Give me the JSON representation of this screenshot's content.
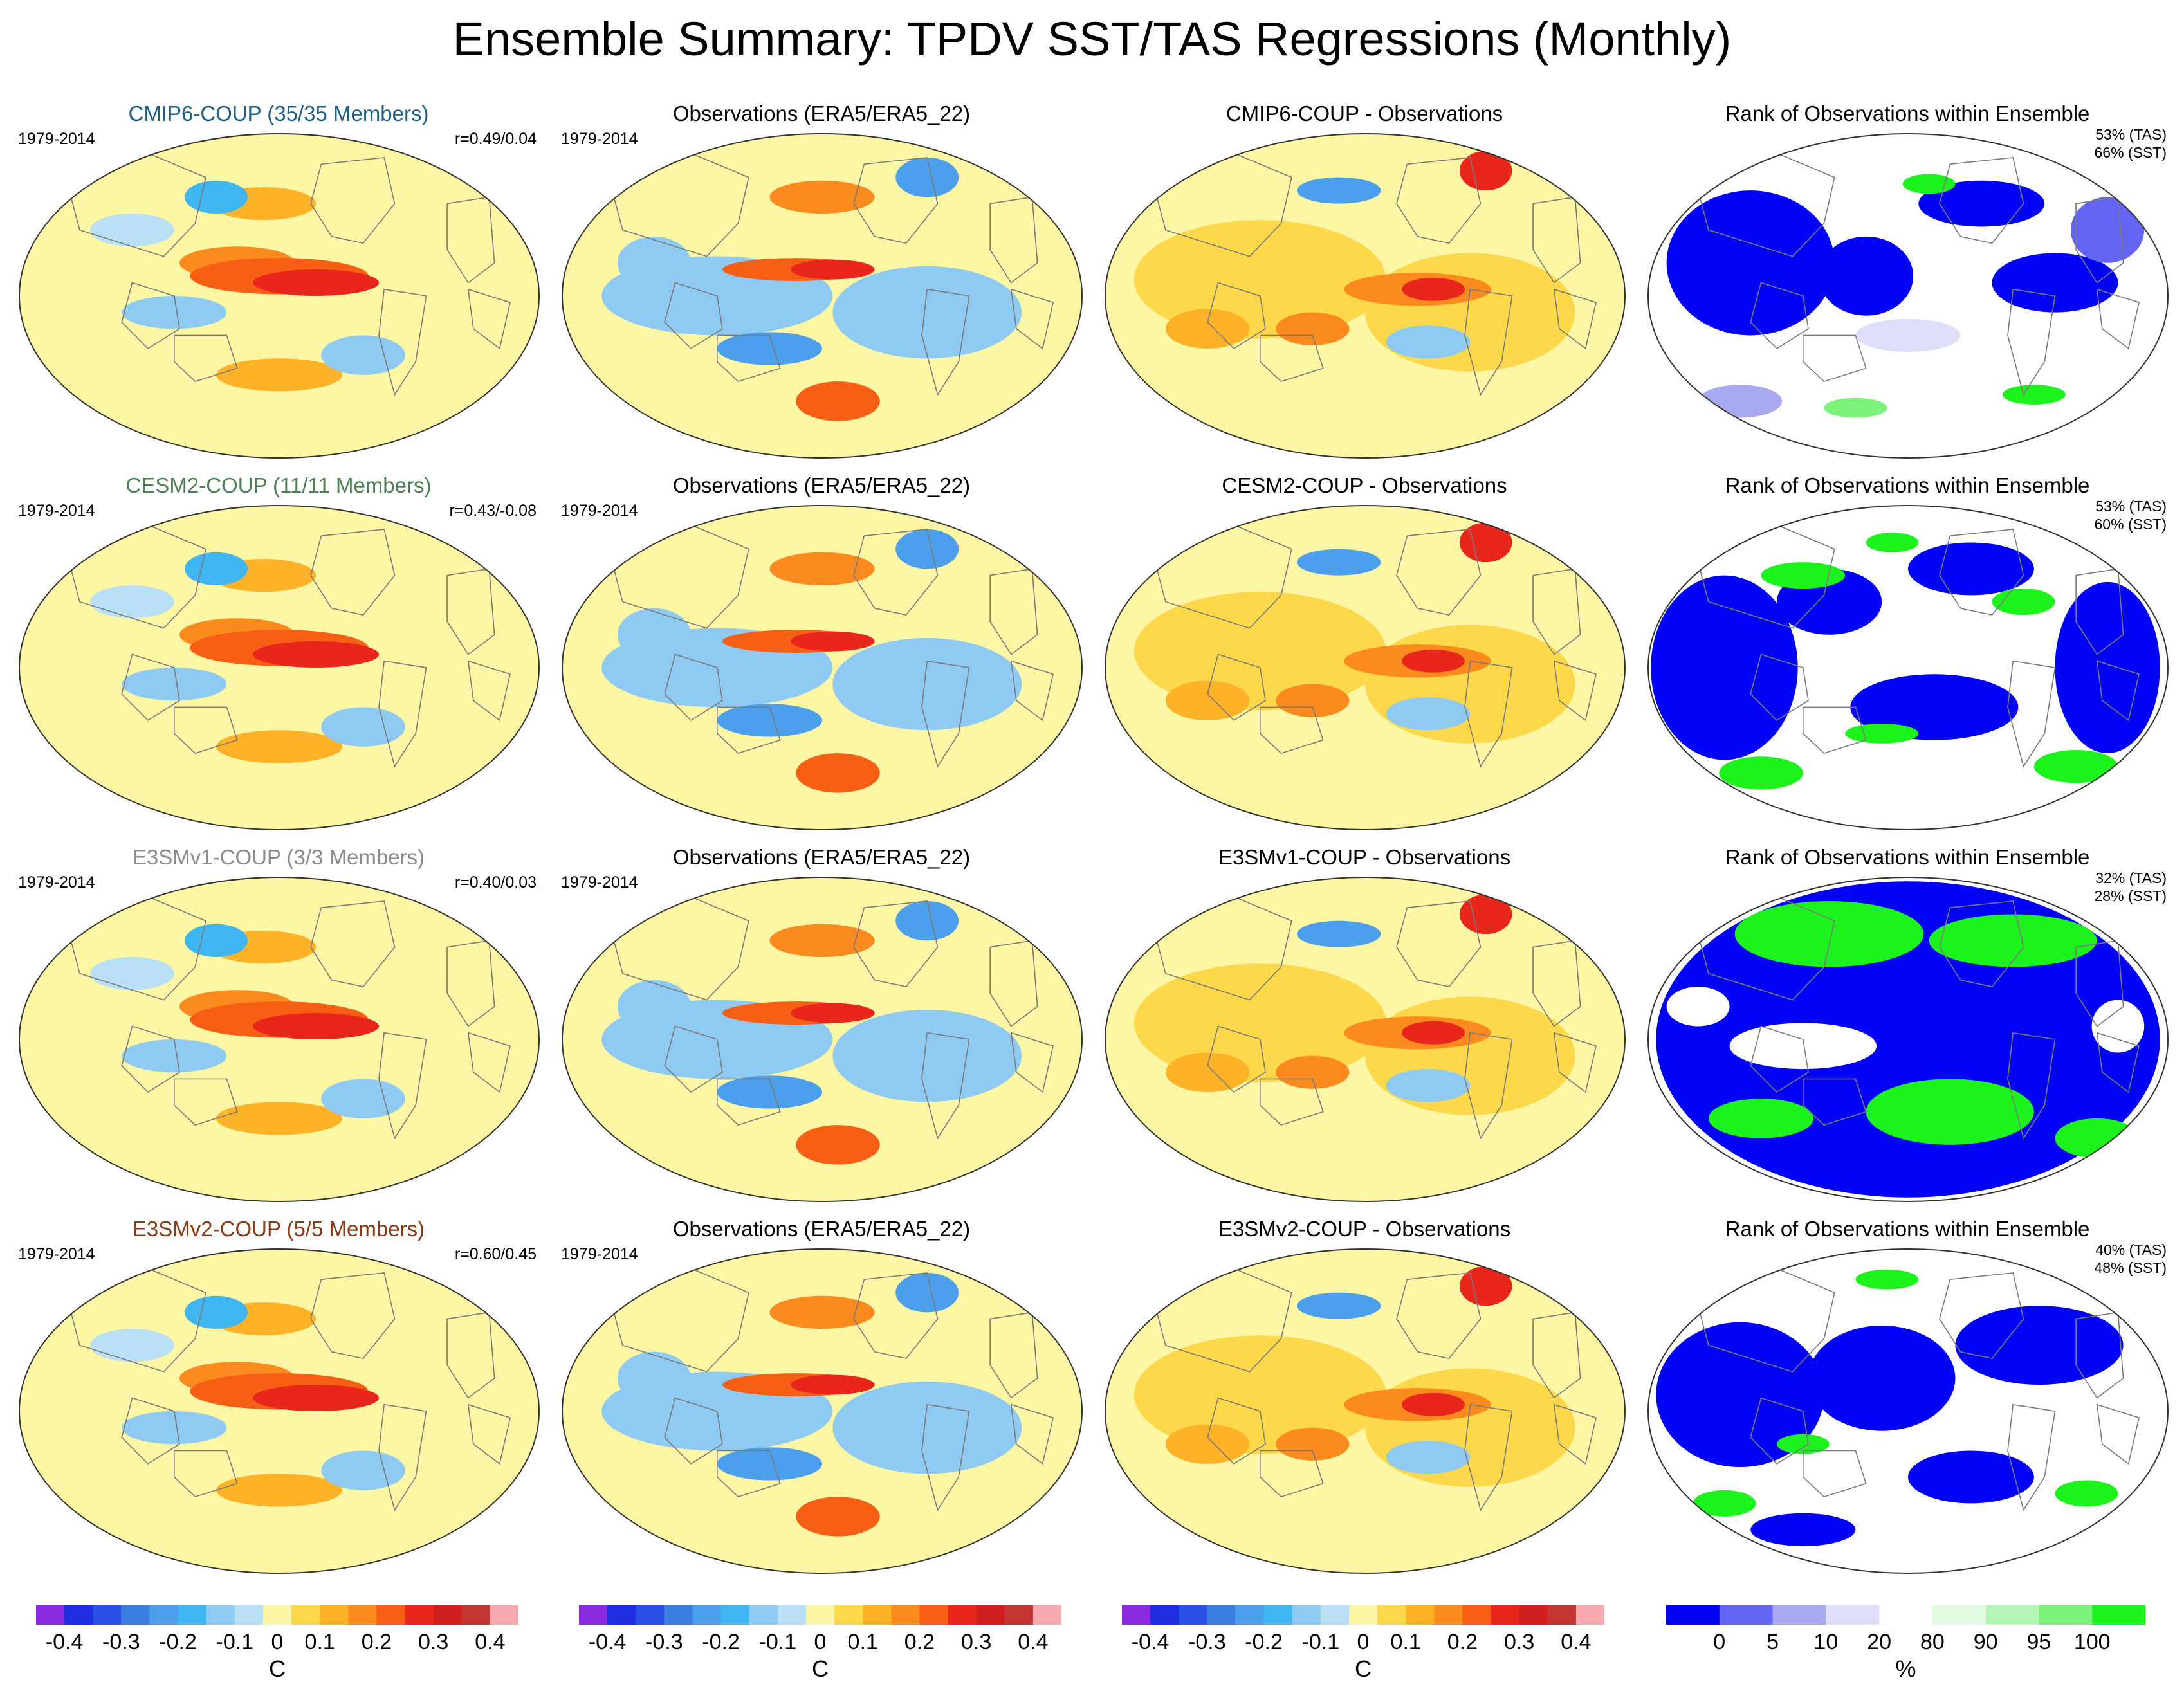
{
  "title": "Ensemble Summary: TPDV SST/TAS Regressions (Monthly)",
  "colors": {
    "yellow": "#fdf6a4",
    "land_line": "#7a7a7a",
    "diverging": [
      "#8a2be2",
      "#1f2fe0",
      "#2b50e6",
      "#3c7fe3",
      "#4b9fec",
      "#3fb6f2",
      "#8fcaf2",
      "#b9e0f5",
      "#fdf6a4",
      "#fdd84a",
      "#fdb227",
      "#fb8b1e",
      "#f65f14",
      "#e8261b",
      "#cf1f1f",
      "#c43535",
      "#f8aab0"
    ],
    "rank": [
      "#0202f6",
      "#6565f5",
      "#a9a9f1",
      "#dedefb",
      "#ffffff",
      "#e3fbe3",
      "#b8f6b8",
      "#7bf37b",
      "#1cf21c"
    ]
  },
  "rows": [
    {
      "model": {
        "title": "CMIP6-COUP (35/35 Members)",
        "title_color": "#1f5f87",
        "period": "1979-2014",
        "corr": "r=0.49/0.04"
      },
      "obs": {
        "title": "Observations (ERA5/ERA5_22)",
        "period": "1979-2014"
      },
      "diff": {
        "title": "CMIP6-COUP - Observations"
      },
      "rank": {
        "title": "Rank of Observations within Ensemble",
        "tas": "53% (TAS)",
        "sst": "66% (SST)"
      }
    },
    {
      "model": {
        "title": "CESM2-COUP (11/11 Members)",
        "title_color": "#4f7f56",
        "period": "1979-2014",
        "corr": "r=0.43/-0.08"
      },
      "obs": {
        "title": "Observations (ERA5/ERA5_22)",
        "period": "1979-2014"
      },
      "diff": {
        "title": "CESM2-COUP - Observations"
      },
      "rank": {
        "title": "Rank of Observations within Ensemble",
        "tas": "53% (TAS)",
        "sst": "60% (SST)"
      }
    },
    {
      "model": {
        "title": "E3SMv1-COUP (3/3 Members)",
        "title_color": "#8b8b8b",
        "period": "1979-2014",
        "corr": "r=0.40/0.03"
      },
      "obs": {
        "title": "Observations (ERA5/ERA5_22)",
        "period": "1979-2014"
      },
      "diff": {
        "title": "E3SMv1-COUP - Observations"
      },
      "rank": {
        "title": "Rank of Observations within Ensemble",
        "tas": "32% (TAS)",
        "sst": "28% (SST)"
      }
    },
    {
      "model": {
        "title": "E3SMv2-COUP (5/5 Members)",
        "title_color": "#8b3a17",
        "period": "1979-2014",
        "corr": "r=0.60/0.45"
      },
      "obs": {
        "title": "Observations (ERA5/ERA5_22)",
        "period": "1979-2014"
      },
      "diff": {
        "title": "E3SMv2-COUP - Observations"
      },
      "rank": {
        "title": "Rank of Observations within Ensemble",
        "tas": "40% (TAS)",
        "sst": "48% (SST)"
      }
    }
  ],
  "chart_data": {
    "type": "heatmap",
    "title": "Ensemble Summary: TPDV SST/TAS Regressions (Monthly)",
    "projection": "Robinson, Pacific-centered",
    "regression_colorbar": {
      "unit": "C",
      "tick_labels": [
        "-0.4",
        "-0.3",
        "-0.2",
        "-0.1",
        "0",
        "0.1",
        "0.2",
        "0.3",
        "0.4"
      ],
      "boundaries": [
        -0.45,
        -0.4,
        -0.35,
        -0.3,
        -0.25,
        -0.2,
        -0.15,
        -0.1,
        -0.05,
        0.05,
        0.1,
        0.15,
        0.2,
        0.25,
        0.3,
        0.35,
        0.4,
        0.45
      ]
    },
    "rank_colorbar": {
      "unit": "%",
      "tick_labels": [
        "0",
        "5",
        "10",
        "20",
        "80",
        "90",
        "95",
        "100"
      ]
    },
    "rank_percent_tas": [
      53,
      53,
      32,
      40
    ],
    "rank_percent_sst": [
      66,
      60,
      28,
      48
    ],
    "pattern_correlation": [
      {
        "model": "CMIP6-COUP",
        "tas": 0.49,
        "sst": 0.04
      },
      {
        "model": "CESM2-COUP",
        "tas": 0.43,
        "sst": -0.08
      },
      {
        "model": "E3SMv1-COUP",
        "tas": 0.4,
        "sst": 0.03
      },
      {
        "model": "E3SMv2-COUP",
        "tas": 0.6,
        "sst": 0.45
      }
    ],
    "ensemble_members": [
      {
        "model": "CMIP6-COUP",
        "used": 35,
        "total": 35
      },
      {
        "model": "CESM2-COUP",
        "used": 11,
        "total": 11
      },
      {
        "model": "E3SMv1-COUP",
        "used": 3,
        "total": 3
      },
      {
        "model": "E3SMv2-COUP",
        "used": 5,
        "total": 5
      }
    ]
  }
}
